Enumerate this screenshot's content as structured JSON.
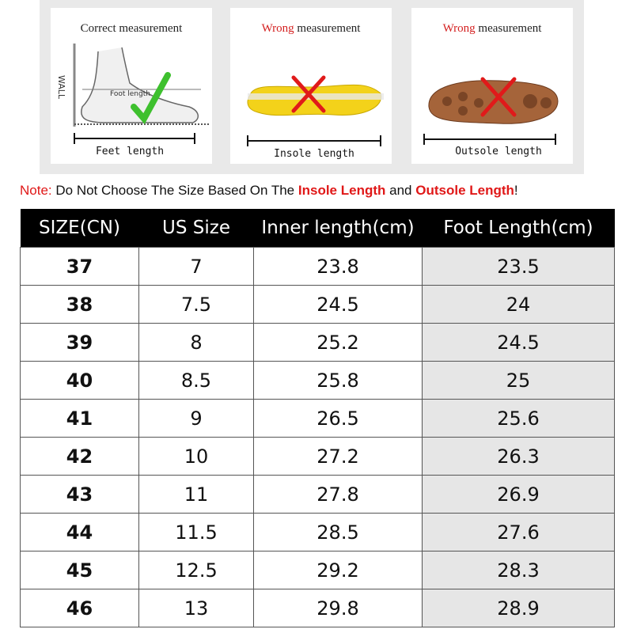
{
  "panels": [
    {
      "title": {
        "emphasis": "",
        "text": "Correct measurement"
      },
      "labels": [
        "WALL",
        "Foot length",
        "Feet length"
      ]
    },
    {
      "title": {
        "emphasis": "Wrong",
        "text": "measurement"
      },
      "labels": [
        "Insole length"
      ]
    },
    {
      "title": {
        "emphasis": "Wrong",
        "text": "measurement"
      },
      "labels": [
        "Outsole length"
      ]
    }
  ],
  "note": {
    "label": "Note:",
    "text": "Do Not Choose The Size Based On The",
    "insole": "Insole Length",
    "and": "and",
    "outsole": "Outsole Length",
    "end": "!"
  },
  "table": {
    "header": [
      "SIZE(CN)",
      "US Size",
      "Inner length(cm)",
      "Foot Length(cm)"
    ],
    "rows": [
      [
        37,
        7,
        23.8,
        23.5
      ],
      [
        38,
        7.5,
        24.5,
        24
      ],
      [
        39,
        8,
        25.2,
        24.5
      ],
      [
        40,
        8.5,
        25.8,
        25
      ],
      [
        41,
        9,
        26.5,
        25.6
      ],
      [
        42,
        10,
        27.2,
        26.3
      ],
      [
        43,
        11,
        27.8,
        26.9
      ],
      [
        44,
        11.5,
        28.5,
        27.6
      ],
      [
        45,
        12.5,
        29.2,
        28.3
      ],
      [
        46,
        13,
        29.8,
        28.9
      ]
    ]
  }
}
